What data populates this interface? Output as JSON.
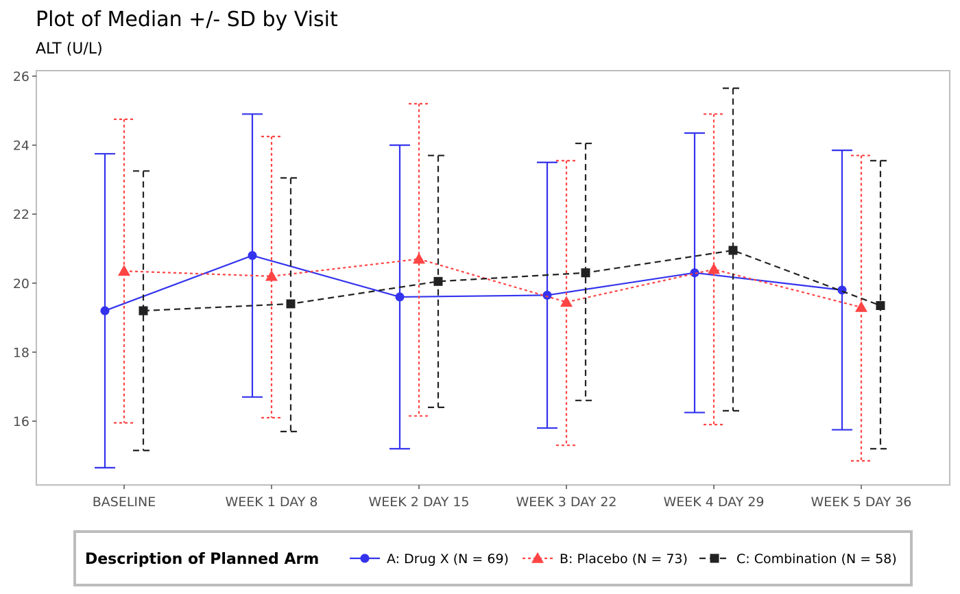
{
  "chart_data": {
    "type": "line",
    "title": "Plot of Median +/- SD by Visit",
    "subtitle": "ALT (U/L)",
    "xlabel": "",
    "ylabel": "",
    "categories": [
      "BASELINE",
      "WEEK 1 DAY 8",
      "WEEK 2 DAY 15",
      "WEEK 3 DAY 22",
      "WEEK 4 DAY 29",
      "WEEK 5 DAY 36"
    ],
    "ylim": [
      14.2,
      26.2
    ],
    "yticks": [
      16,
      18,
      20,
      22,
      24,
      26
    ],
    "grid": false,
    "legend_position": "bottom",
    "legend_title": "Description of Planned Arm",
    "series": [
      {
        "name": "A: Drug X (N = 69)",
        "color": "#3333ee",
        "marker": "circle",
        "line_style": "solid",
        "median": [
          19.2,
          20.8,
          19.6,
          19.65,
          20.3,
          19.8
        ],
        "lower": [
          14.65,
          16.7,
          15.2,
          15.8,
          16.25,
          15.75
        ],
        "upper": [
          23.75,
          24.9,
          24.0,
          23.5,
          24.35,
          23.85
        ]
      },
      {
        "name": "B: Placebo (N = 73)",
        "color": "#ff4444",
        "marker": "triangle",
        "line_style": "dotted",
        "median": [
          20.35,
          20.2,
          20.7,
          19.45,
          20.4,
          19.3
        ],
        "lower": [
          15.95,
          16.1,
          16.15,
          15.3,
          15.9,
          14.85
        ],
        "upper": [
          24.75,
          24.25,
          25.2,
          23.55,
          24.9,
          23.7
        ]
      },
      {
        "name": "C: Combination (N = 58)",
        "color": "#222222",
        "marker": "square",
        "line_style": "dashed",
        "median": [
          19.2,
          19.4,
          20.05,
          20.3,
          20.95,
          19.35
        ],
        "lower": [
          15.15,
          15.7,
          16.4,
          16.6,
          16.3,
          15.2
        ],
        "upper": [
          23.25,
          23.05,
          23.7,
          24.05,
          25.65,
          23.55
        ]
      }
    ]
  }
}
